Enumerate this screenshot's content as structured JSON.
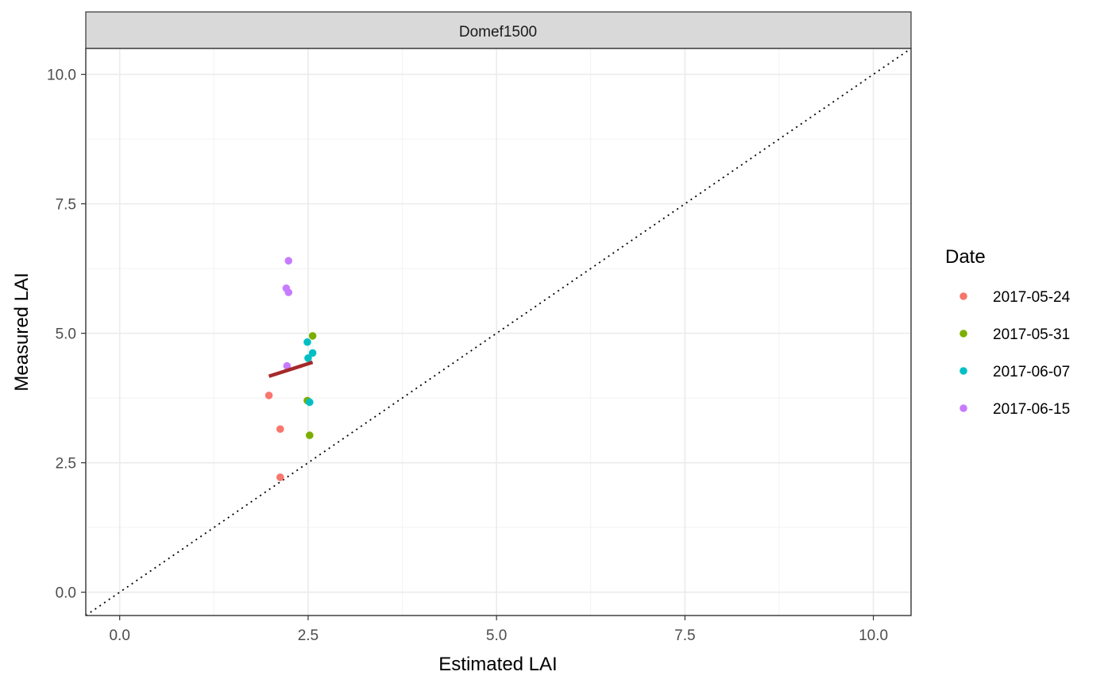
{
  "chart_data": {
    "type": "scatter",
    "facet_label": "Domef1500",
    "xlabel": "Estimated LAI",
    "ylabel": "Measured LAI",
    "xlim": [
      -0.45,
      10.5
    ],
    "ylim": [
      -0.45,
      10.5
    ],
    "x_ticks": [
      0.0,
      2.5,
      5.0,
      7.5,
      10.0
    ],
    "y_ticks": [
      0.0,
      2.5,
      5.0,
      7.5,
      10.0
    ],
    "x_tick_labels": [
      "0.0",
      "2.5",
      "5.0",
      "7.5",
      "10.0"
    ],
    "y_tick_labels": [
      "0.0",
      "2.5",
      "5.0",
      "7.5",
      "10.0"
    ],
    "grid": true,
    "legend": {
      "title": "Date",
      "position": "right"
    },
    "series": [
      {
        "name": "2017-05-24",
        "color": "#F8766D",
        "points": [
          {
            "x": 1.98,
            "y": 3.8
          },
          {
            "x": 2.13,
            "y": 3.15
          },
          {
            "x": 2.13,
            "y": 2.22
          }
        ]
      },
      {
        "name": "2017-05-31",
        "color": "#7CAE00",
        "points": [
          {
            "x": 2.56,
            "y": 4.95
          },
          {
            "x": 2.49,
            "y": 3.7
          },
          {
            "x": 2.52,
            "y": 3.03
          }
        ]
      },
      {
        "name": "2017-06-07",
        "color": "#00BFC4",
        "points": [
          {
            "x": 2.49,
            "y": 4.83
          },
          {
            "x": 2.56,
            "y": 4.62
          },
          {
            "x": 2.5,
            "y": 4.52
          },
          {
            "x": 2.52,
            "y": 3.67
          }
        ]
      },
      {
        "name": "2017-06-15",
        "color": "#C77CFF",
        "points": [
          {
            "x": 2.24,
            "y": 6.4
          },
          {
            "x": 2.21,
            "y": 5.87
          },
          {
            "x": 2.24,
            "y": 5.79
          },
          {
            "x": 2.22,
            "y": 4.37
          }
        ]
      }
    ],
    "fit_line": {
      "color": "#A52A2A",
      "x": [
        1.98,
        2.56
      ],
      "y": [
        4.17,
        4.44
      ]
    },
    "reference_line": {
      "type": "1:1",
      "style": "dotted",
      "color": "#000000"
    }
  }
}
